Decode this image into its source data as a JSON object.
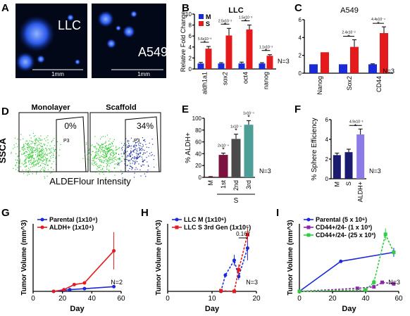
{
  "panels": {
    "A": {
      "letter": "A",
      "left_label": "LLC",
      "right_label": "A549",
      "scale_left": "1mm",
      "scale_right": "1mm"
    },
    "D": {
      "letter": "D",
      "left_title": "Monolayer",
      "right_title": "Scaffold",
      "left_pct": "0%",
      "right_pct": "34%",
      "gate_label": "P3",
      "ylabel": "SSCA",
      "xlabel": "ALDEFlour Intensity"
    }
  },
  "colors": {
    "blue": "#1a2ad8",
    "red": "#e41a1c",
    "maroon": "#7b1240",
    "darkgray": "#4a4a4a",
    "teal": "#4d9e96",
    "navy": "#1a1a6e",
    "violet": "#8c7ae6",
    "green": "#2ecc40",
    "purple": "#8e24aa",
    "dots_green": "#33cc33",
    "dots_blue": "#2233aa"
  },
  "chart_data": [
    {
      "panel": "B",
      "type": "bar",
      "title": "LLC",
      "ylabel": "Relative Fold Change",
      "categories": [
        "aldh1a1",
        "sox2",
        "oct4",
        "nanog"
      ],
      "ylim": [
        0,
        10
      ],
      "yticks": [
        0,
        2,
        4,
        6,
        8,
        10
      ],
      "series": [
        {
          "name": "M",
          "values": [
            1,
            1,
            1,
            1
          ],
          "errors": [
            0.2,
            0.15,
            0.25,
            0.15
          ]
        },
        {
          "name": "S",
          "values": [
            3.7,
            6.1,
            7.2,
            2.4
          ],
          "errors": [
            0.4,
            1.3,
            0.8,
            0.2
          ]
        }
      ],
      "annotations": [
        "5.6x10⁻³",
        "2.5x10⁻²",
        "1.5x10⁻³",
        "1.1x10⁻²"
      ],
      "note": "N=3",
      "legend": "top-left"
    },
    {
      "panel": "C",
      "type": "bar",
      "title": "A549",
      "categories": [
        "Nanog",
        "Sox2",
        "CD44"
      ],
      "ylim": [
        0,
        6
      ],
      "yticks": [
        0,
        2,
        4,
        6
      ],
      "series": [
        {
          "name": "M",
          "values": [
            1,
            1,
            1
          ],
          "errors": [
            0,
            0,
            0.05
          ]
        },
        {
          "name": "S",
          "values": [
            2.35,
            2.95,
            4.5
          ],
          "errors": [
            0,
            0.8,
            0.7
          ]
        }
      ],
      "annotations": [
        "",
        "2.4x10⁻²",
        "4.4x10⁻⁴"
      ],
      "note": "N=3"
    },
    {
      "panel": "E",
      "type": "bar",
      "ylabel": "% ALDH+",
      "categories": [
        "M",
        "1st",
        "2nd",
        "3rd"
      ],
      "group_label": "S",
      "ylim": [
        0,
        100
      ],
      "yticks": [
        0,
        20,
        40,
        60,
        80,
        100
      ],
      "values": [
        1,
        38,
        65,
        89
      ],
      "errors": [
        0.3,
        3,
        8,
        7
      ],
      "annotations": [
        "",
        "2x10⁻⁴",
        "1x10⁻⁴",
        "1x10⁻⁴"
      ],
      "note": "N=3"
    },
    {
      "panel": "F",
      "type": "bar",
      "ylabel": "% Sphere Efficiency",
      "categories": [
        "M",
        "S",
        "ALDH+"
      ],
      "ylim": [
        0,
        6
      ],
      "yticks": [
        0,
        2,
        4,
        6
      ],
      "values": [
        2.4,
        2.7,
        4.5
      ],
      "errors": [
        0.2,
        0.3,
        0.55
      ],
      "annotations": [
        "",
        "",
        "4.9x10⁻³"
      ],
      "note": "N=3"
    },
    {
      "panel": "G",
      "type": "line",
      "xlabel": "Day",
      "ylabel": "Tumor Volume (mm^3)",
      "xlim": [
        0,
        60
      ],
      "xticks": [
        0,
        20,
        40,
        60
      ],
      "ylim": [
        0,
        200
      ],
      "series": [
        {
          "name": "Parental (1x10⁴)",
          "x": [
            14,
            21,
            25,
            35,
            55
          ],
          "y": [
            0,
            3,
            5,
            8,
            14
          ],
          "errors": [
            0,
            0,
            0,
            0,
            0
          ]
        },
        {
          "name": "ALDH+ (1x10⁴)",
          "x": [
            14,
            21,
            28,
            35,
            55
          ],
          "y": [
            0,
            5,
            20,
            25,
            120
          ],
          "errors": [
            0,
            0,
            0,
            0,
            55
          ]
        }
      ],
      "note": "N=2",
      "legend": "top-left"
    },
    {
      "panel": "H",
      "type": "line",
      "xlabel": "Day",
      "ylabel": "Tumor Volume (mm^3)",
      "xlim": [
        0,
        20
      ],
      "xticks": [
        0,
        10,
        20
      ],
      "ylim": [
        0,
        500
      ],
      "series": [
        {
          "name": "LLC M (1x10⁶)",
          "x": [
            12,
            13,
            15,
            16,
            18
          ],
          "y": [
            0,
            120,
            230,
            110,
            320
          ],
          "errors": [
            0,
            15,
            40,
            25,
            90
          ]
        },
        {
          "name": "LLC S 3rd Gen (1x10⁵)",
          "x": [
            12,
            15,
            16,
            18
          ],
          "y": [
            5,
            0,
            160,
            420
          ],
          "errors": [
            0,
            0,
            40,
            50
          ]
        }
      ],
      "annotations": [
        "0.167"
      ],
      "note": "N=3",
      "legend": "top-left"
    },
    {
      "panel": "I",
      "type": "line",
      "xlabel": "Day",
      "ylabel": "Tumor Volume (mm^3)",
      "xlim": [
        0,
        60
      ],
      "xticks": [
        0,
        20,
        40,
        60
      ],
      "series": [
        {
          "name": "Parental (5 x 10⁶)",
          "x": [
            0,
            25,
            57
          ],
          "y": [
            0,
            200,
            260
          ],
          "errors": [
            0,
            10,
            30
          ]
        },
        {
          "name": "CD44+/24- (1 x 10³)",
          "x": [
            0,
            35,
            45,
            50,
            57
          ],
          "y": [
            0,
            20,
            30,
            60,
            50
          ],
          "errors": [
            0,
            0,
            0,
            0,
            0
          ]
        },
        {
          "name": "CD44+/24- (25 x 10³)",
          "x": [
            0,
            40,
            45,
            52,
            57
          ],
          "y": [
            0,
            10,
            60,
            380,
            260
          ],
          "errors": [
            0,
            0,
            20,
            40,
            0
          ]
        }
      ],
      "note": "N=3",
      "legend": "top-left"
    }
  ]
}
